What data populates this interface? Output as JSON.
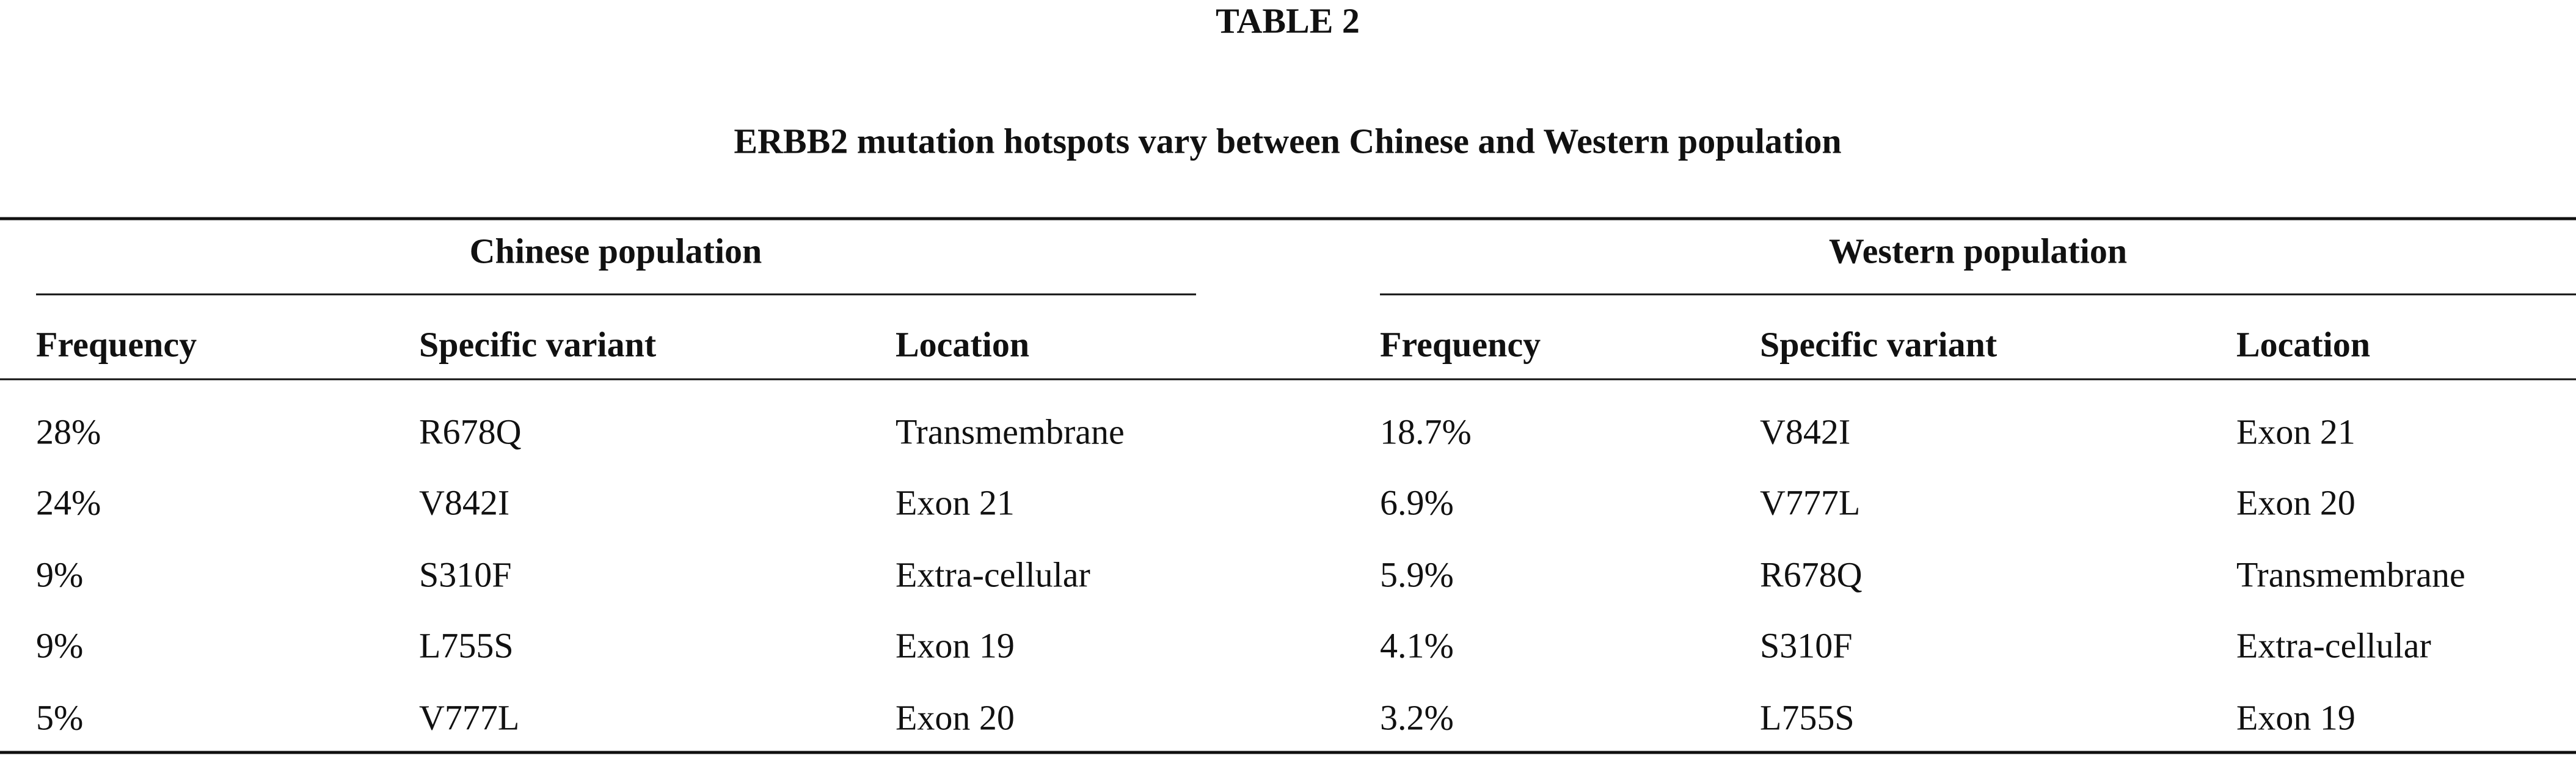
{
  "header": {
    "label": "TABLE 2",
    "title": "ERBB2 mutation hotspots vary between Chinese and Western population"
  },
  "table": {
    "groups": [
      "Chinese population",
      "Western population"
    ],
    "columns": [
      "Frequency",
      "Specific variant",
      "Location",
      "Frequency",
      "Specific variant",
      "Location"
    ],
    "rows": [
      [
        "28%",
        "R678Q",
        "Transmembrane",
        "18.7%",
        "V842I",
        "Exon 21"
      ],
      [
        "24%",
        "V842I",
        "Exon 21",
        "6.9%",
        "V777L",
        "Exon 20"
      ],
      [
        "9%",
        "S310F",
        "Extra-cellular",
        "5.9%",
        "R678Q",
        "Transmembrane"
      ],
      [
        "9%",
        "L755S",
        "Exon 19",
        "4.1%",
        "S310F",
        "Extra-cellular"
      ],
      [
        "5%",
        "V777L",
        "Exon 20",
        "3.2%",
        "L755S",
        "Exon 19"
      ]
    ]
  }
}
